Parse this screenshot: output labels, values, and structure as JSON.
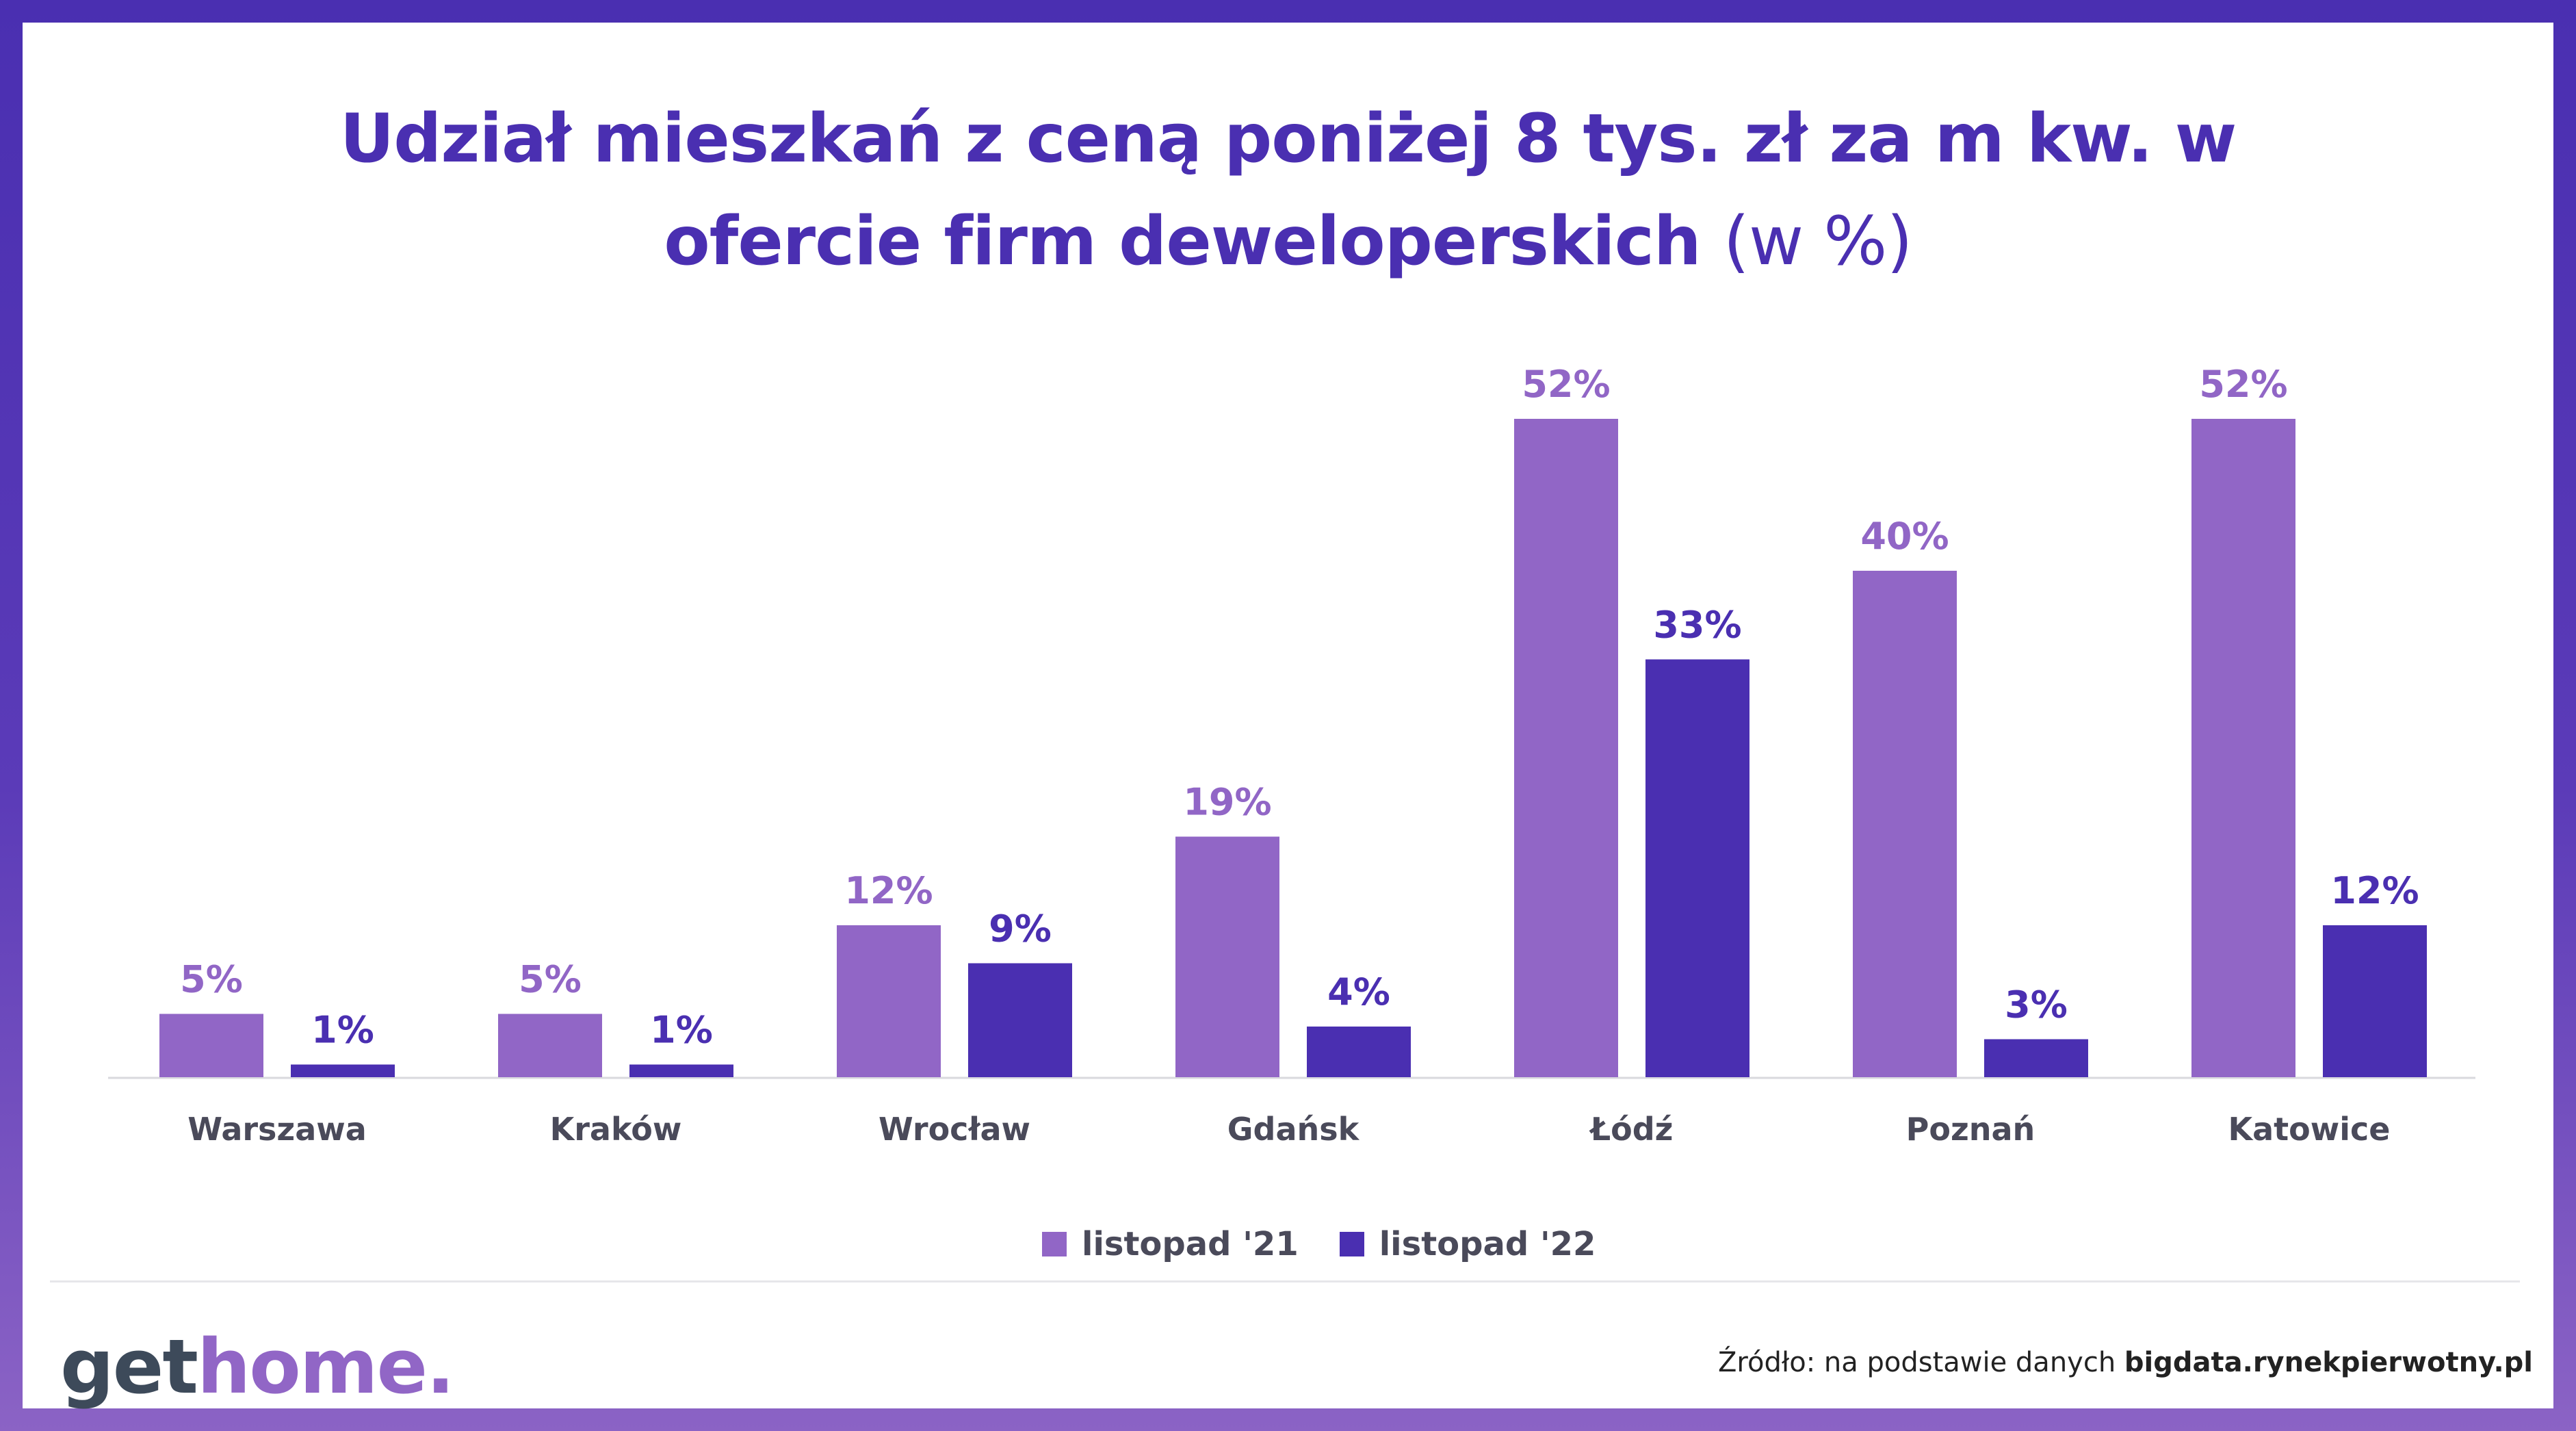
{
  "title": {
    "line1": "Udział mieszkań z ceną poniżej 8 tys. zł za m kw. w",
    "line2": "ofercie firm deweloperskich",
    "unit": "(w %)"
  },
  "chart_data": {
    "type": "bar",
    "categories": [
      "Warszawa",
      "Kraków",
      "Wrocław",
      "Gdańsk",
      "Łódź",
      "Poznań",
      "Katowice"
    ],
    "series": [
      {
        "name": "listopad '21",
        "values": [
          5,
          5,
          12,
          19,
          52,
          40,
          52
        ],
        "labels": [
          "5%",
          "5%",
          "12%",
          "19%",
          "52%",
          "40%",
          "52%"
        ],
        "color": "#9166c6"
      },
      {
        "name": "listopad '22",
        "values": [
          1,
          1,
          9,
          4,
          33,
          3,
          12
        ],
        "labels": [
          "1%",
          "1%",
          "9%",
          "4%",
          "33%",
          "3%",
          "12%"
        ],
        "color": "#4a2fb1"
      }
    ],
    "ylim": [
      0,
      52
    ],
    "grid": false,
    "legend": "bottom"
  },
  "legend": {
    "s1": "listopad '21",
    "s2": "listopad '22"
  },
  "logo": {
    "part1": "get",
    "part2": "home."
  },
  "source": {
    "prefix": "Źródło: na podstawie danych ",
    "site": "bigdata.rynekpierwotny.pl"
  },
  "colors": {
    "light": "#9166c6",
    "dark": "#4a2fb1",
    "text": "#4a4a5a"
  }
}
